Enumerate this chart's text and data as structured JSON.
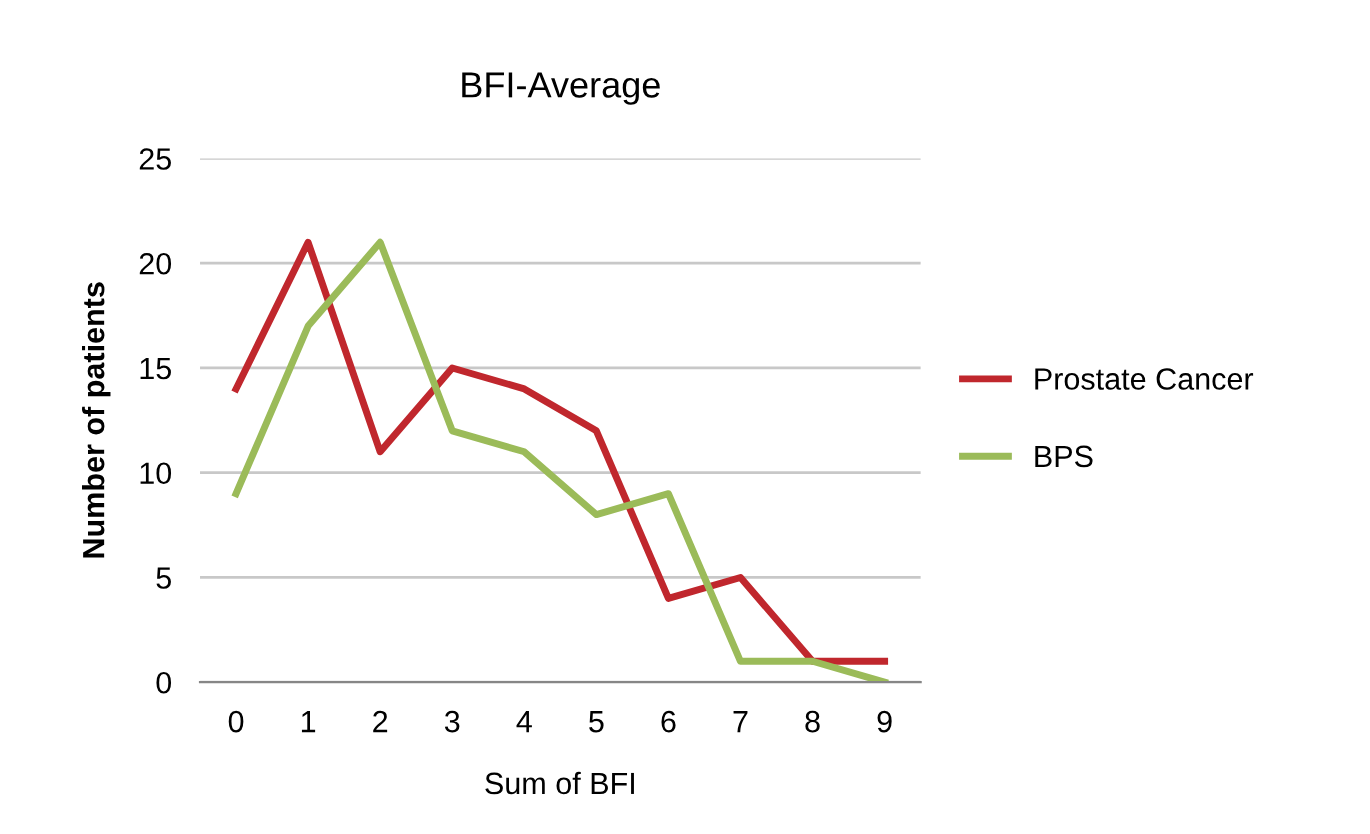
{
  "chart_data": {
    "type": "line",
    "title": "BFI-Average",
    "xlabel": "Sum of BFI",
    "ylabel": "Number of patients",
    "categories": [
      "0",
      "1",
      "2",
      "3",
      "4",
      "5",
      "6",
      "7",
      "8",
      "9"
    ],
    "series": [
      {
        "name": "Prostate Cancer",
        "color": "#c0272d",
        "values": [
          14,
          21,
          11,
          15,
          14,
          12,
          4,
          5,
          1,
          1
        ]
      },
      {
        "name": "BPS",
        "color": "#9bbb59",
        "values": [
          9,
          17,
          21,
          12,
          11,
          8,
          9,
          1,
          1,
          0
        ]
      }
    ],
    "ylim": [
      0,
      25
    ],
    "yticks": [
      0,
      5,
      10,
      15,
      20,
      25
    ],
    "grid": "y",
    "legend": "right",
    "marker": "none",
    "line_style": "solid"
  }
}
